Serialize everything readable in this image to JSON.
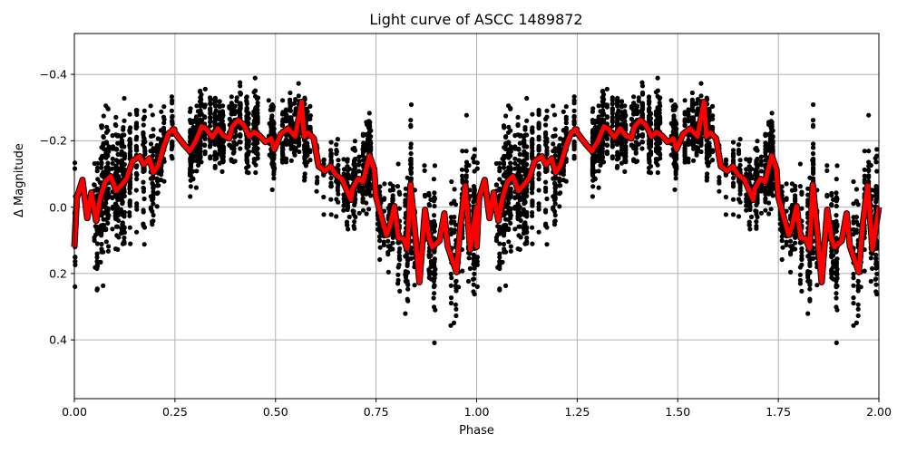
{
  "chart_data": {
    "type": "scatter",
    "title": "Light curve of ASCC 1489872",
    "xlabel": "Phase",
    "ylabel": "Δ Magnitude",
    "xlim": [
      0.0,
      2.0
    ],
    "ylim": [
      0.577,
      -0.523
    ],
    "y_inverted": true,
    "grid": true,
    "legend": null,
    "xticks": [
      "0.00",
      "0.25",
      "0.50",
      "0.75",
      "1.00",
      "1.25",
      "1.50",
      "1.75",
      "2.00"
    ],
    "yticks": [
      "−0.4",
      "−0.2",
      "0.0",
      "0.2",
      "0.4"
    ],
    "ytick_values": [
      -0.4,
      -0.2,
      0.0,
      0.2,
      0.4
    ],
    "colors": {
      "points": "#000000",
      "binned_curve": "#ff0000",
      "curve_edge": "#000000",
      "grid": "#b0b0b0"
    },
    "series": [
      {
        "name": "observations",
        "style": "scatter",
        "description": "dense black points, phase-folded and repeated over 0-2; concentrated around -0.45..0.1 at phase 0.25-0.65, wider spread 0.5..-0.4 near phase 0.85-1.0"
      },
      {
        "name": "binned mean (phase 0-1, repeated for 1-2)",
        "style": "line",
        "x": [
          0.0,
          0.003,
          0.01,
          0.016,
          0.021,
          0.027,
          0.032,
          0.038,
          0.045,
          0.052,
          0.059,
          0.065,
          0.072,
          0.081,
          0.086,
          0.093,
          0.098,
          0.104,
          0.111,
          0.117,
          0.124,
          0.122,
          0.13,
          0.136,
          0.143,
          0.15,
          0.158,
          0.163,
          0.171,
          0.178,
          0.185,
          0.192,
          0.196,
          0.203,
          0.21,
          0.217,
          0.223,
          0.23,
          0.237,
          0.244,
          0.248,
          0.256,
          0.265,
          0.274,
          0.282,
          0.285,
          0.29,
          0.297,
          0.303,
          0.311,
          0.318,
          0.324,
          0.332,
          0.343,
          0.345,
          0.352,
          0.358,
          0.366,
          0.372,
          0.374,
          0.387,
          0.391,
          0.397,
          0.402,
          0.408,
          0.413,
          0.417,
          0.422,
          0.428,
          0.435,
          0.44,
          0.444,
          0.453,
          0.459,
          0.463,
          0.474,
          0.479,
          0.485,
          0.491,
          0.499
        ],
        "y": [
          0.12,
          -0.027,
          -0.082,
          0.033,
          -0.044,
          0.041,
          -0.027,
          -0.076,
          -0.093,
          -0.049,
          -0.068,
          -0.087,
          -0.139,
          -0.153,
          -0.128,
          -0.147,
          -0.104,
          -0.125,
          -0.185,
          -0.223,
          -0.234,
          -0.234,
          -0.207,
          -0.188,
          -0.169,
          -0.196,
          -0.243,
          -0.237,
          -0.21,
          -0.237,
          -0.215,
          -0.207,
          -0.243,
          -0.262,
          -0.248,
          -0.213,
          -0.226,
          -0.215,
          -0.196,
          -0.207,
          -0.174,
          -0.22,
          -0.237,
          -0.213,
          -0.317,
          -0.213,
          -0.224,
          -0.207,
          -0.123,
          -0.109,
          -0.123,
          -0.098,
          -0.084,
          -0.022,
          -0.055,
          -0.085,
          -0.076,
          -0.155,
          -0.114,
          -0.033,
          0.084,
          0.06,
          -0.003,
          0.093,
          0.095,
          0.125,
          -0.068,
          0.06,
          0.226,
          0.008,
          0.093,
          0.12,
          0.101,
          0.019,
          0.117,
          0.196,
          0.052,
          -0.065,
          0.128,
          0.0
        ]
      }
    ]
  }
}
